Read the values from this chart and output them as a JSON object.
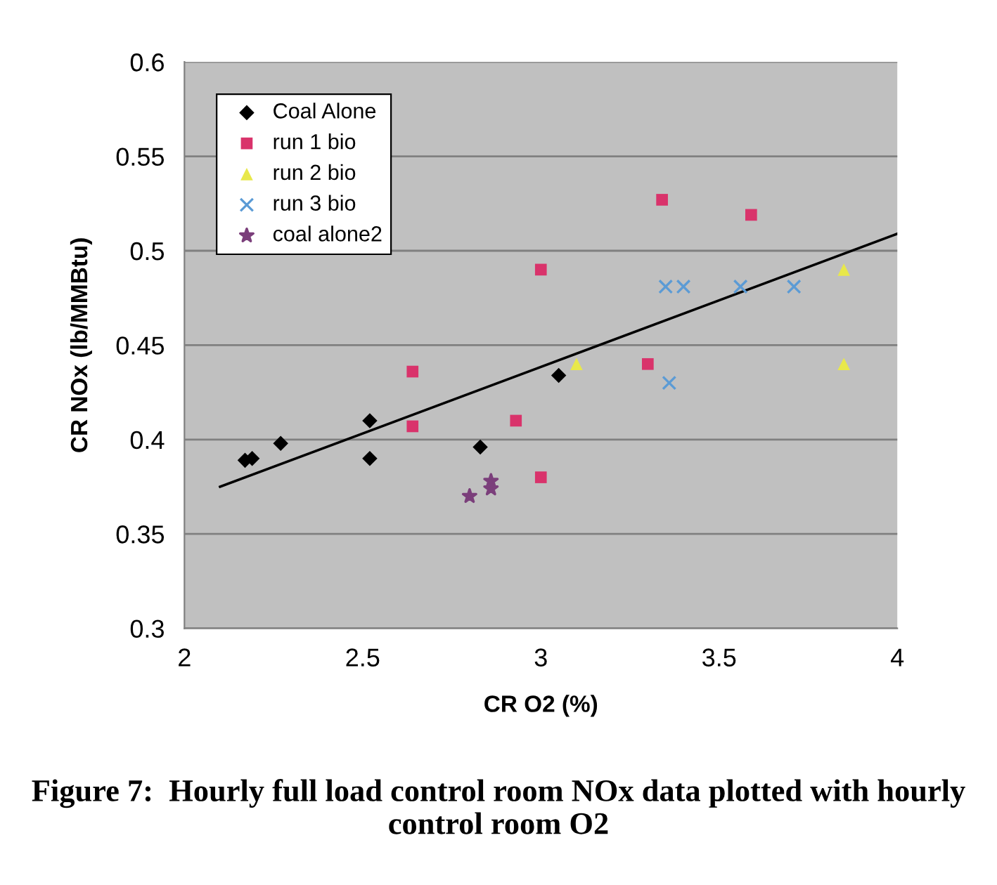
{
  "chart_data": {
    "type": "scatter",
    "xlabel": "CR O2 (%)",
    "ylabel": "CR NOx (lb/MMBtu)",
    "xlim": [
      2,
      4
    ],
    "xticks": [
      2,
      2.5,
      3,
      3.5,
      4
    ],
    "ylim": [
      0.3,
      0.6
    ],
    "yticks": [
      0.3,
      0.35,
      0.4,
      0.45,
      0.5,
      0.55,
      0.6
    ],
    "grid": "y",
    "legend": "top left",
    "annotations": [
      "Figure 7:  Hourly full load control room NOx data plotted with hourly control room O2"
    ],
    "series": [
      {
        "name": "Coal Alone",
        "color": "#000000",
        "marker": "diamond",
        "x": [
          2.17,
          2.19,
          2.27,
          2.52,
          2.52,
          2.83,
          3.05
        ],
        "values": [
          0.389,
          0.39,
          0.398,
          0.41,
          0.39,
          0.396,
          0.434
        ]
      },
      {
        "name": "run 1 bio",
        "color": "#d9336b",
        "marker": "square",
        "x": [
          2.64,
          2.64,
          2.93,
          3.0,
          3.0,
          3.3,
          3.34,
          3.59
        ],
        "values": [
          0.436,
          0.407,
          0.41,
          0.49,
          0.38,
          0.44,
          0.527,
          0.519
        ]
      },
      {
        "name": "run 2 bio",
        "color": "#e8e84a",
        "marker": "triangle",
        "x": [
          3.1,
          3.85,
          3.85
        ],
        "values": [
          0.44,
          0.49,
          0.44
        ]
      },
      {
        "name": "run 3 bio",
        "color": "#5b9bd5",
        "marker": "cross",
        "x": [
          3.35,
          3.4,
          3.56,
          3.71,
          3.36
        ],
        "values": [
          0.481,
          0.481,
          0.481,
          0.481,
          0.43
        ]
      },
      {
        "name": "coal alone2",
        "color": "#7b3f7b",
        "marker": "star",
        "x": [
          2.8,
          2.85,
          2.86,
          2.86
        ],
        "values": [
          0.37,
          null,
          0.378,
          0.374
        ]
      },
      {
        "type": "line",
        "color": "#000000",
        "x": [
          2.1,
          4.0
        ],
        "values": [
          0.375,
          0.509
        ]
      }
    ]
  }
}
